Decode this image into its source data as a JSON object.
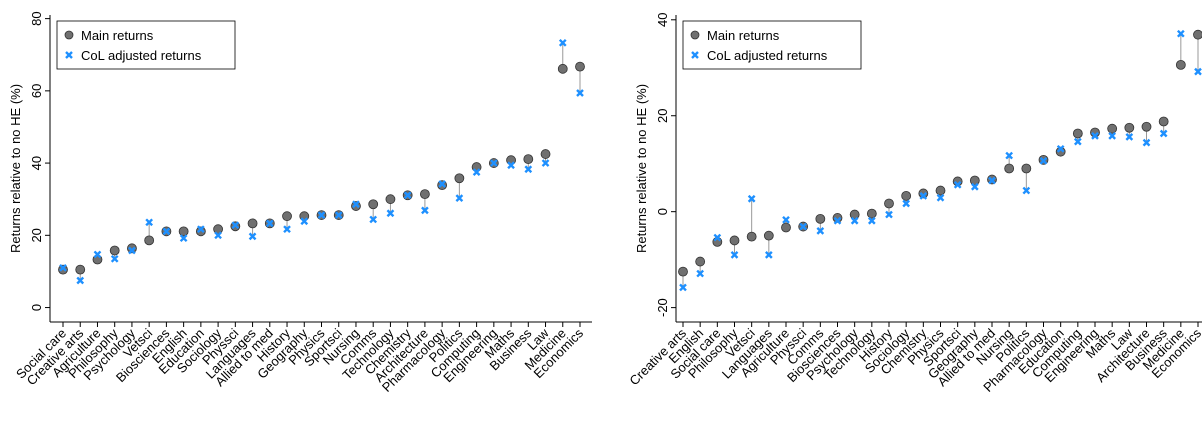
{
  "chart_data": [
    {
      "type": "dot",
      "ylabel": "Returns relative to no HE (%)",
      "categories": [
        "Social care",
        "Creative arts",
        "Agriculture",
        "Philosophy",
        "Psychology",
        "Vetsci",
        "Biosciences",
        "English",
        "Education",
        "Sociology",
        "Physsci",
        "Languages",
        "Allied to med",
        "History",
        "Geography",
        "Physics",
        "Sportsci",
        "Nursing",
        "Comms",
        "Technology",
        "Chemistry",
        "Architecture",
        "Pharmacology",
        "Politics",
        "Computing",
        "Engineering",
        "Maths",
        "Business",
        "Law",
        "Medicine",
        "Economics"
      ],
      "series": [
        {
          "name": "Main returns",
          "color": "#707070",
          "values": [
            10.5,
            10.5,
            13.3,
            15.8,
            16.4,
            18.6,
            21.1,
            21.1,
            21.1,
            21.7,
            22.5,
            23.3,
            23.3,
            25.3,
            25.3,
            25.6,
            25.6,
            28.1,
            28.6,
            30,
            31.1,
            31.4,
            33.9,
            35.8,
            38.9,
            40,
            40.8,
            41.1,
            42.5,
            66.1,
            66.7
          ]
        },
        {
          "name": "CoL adjusted returns",
          "color": "#1e90ff",
          "values": [
            11,
            7.5,
            14.7,
            13.5,
            15.8,
            23.6,
            21.1,
            19.2,
            21.7,
            20,
            22.8,
            19.7,
            23.3,
            21.7,
            23.9,
            25.6,
            25.6,
            28.6,
            24.4,
            26.1,
            31.1,
            26.9,
            34.2,
            30.3,
            37.5,
            40,
            39.4,
            38.3,
            40,
            73.3,
            59.4
          ]
        }
      ],
      "ylim": [
        -4,
        81
      ],
      "yticks": [
        0,
        20,
        40,
        60,
        80
      ]
    },
    {
      "type": "dot",
      "ylabel": "Returns relative to no HE (%)",
      "categories": [
        "Creative arts",
        "English",
        "Social care",
        "Philosophy",
        "Vetsci",
        "Languages",
        "Agriculture",
        "Physsci",
        "Comms",
        "Biosciences",
        "Psychology",
        "Technology",
        "History",
        "Sociology",
        "Chemistry",
        "Physics",
        "Sportsci",
        "Geography",
        "Allied to med",
        "Nursing",
        "Politics",
        "Pharmacology",
        "Education",
        "Computing",
        "Engineering",
        "Maths",
        "Law",
        "Architecture",
        "Business",
        "Medicine",
        "Economics"
      ],
      "series": [
        {
          "name": "Main returns",
          "color": "#707070",
          "values": [
            -12.5,
            -10.4,
            -6.3,
            -6,
            -5.2,
            -5,
            -3.3,
            -3.1,
            -1.5,
            -1.3,
            -0.6,
            -0.4,
            1.7,
            3.3,
            3.8,
            4.4,
            6.3,
            6.5,
            6.7,
            9,
            9,
            10.8,
            12.5,
            16.3,
            16.5,
            17.3,
            17.5,
            17.7,
            18.8,
            30.6,
            36.9
          ]
        },
        {
          "name": "CoL adjusted returns",
          "color": "#1e90ff",
          "values": [
            -15.8,
            -12.9,
            -5.4,
            -9,
            2.7,
            -9,
            -1.7,
            -3.1,
            -4,
            -1.9,
            -1.9,
            -1.9,
            -0.6,
            1.7,
            3.3,
            2.9,
            5.6,
            5.2,
            6.5,
            11.7,
            4.4,
            10.6,
            13.1,
            14.6,
            15.8,
            15.8,
            15.6,
            14.4,
            16.3,
            37.1,
            29.2
          ]
        }
      ],
      "ylim": [
        -23,
        41
      ],
      "yticks": [
        -20,
        0,
        20,
        40
      ]
    }
  ]
}
